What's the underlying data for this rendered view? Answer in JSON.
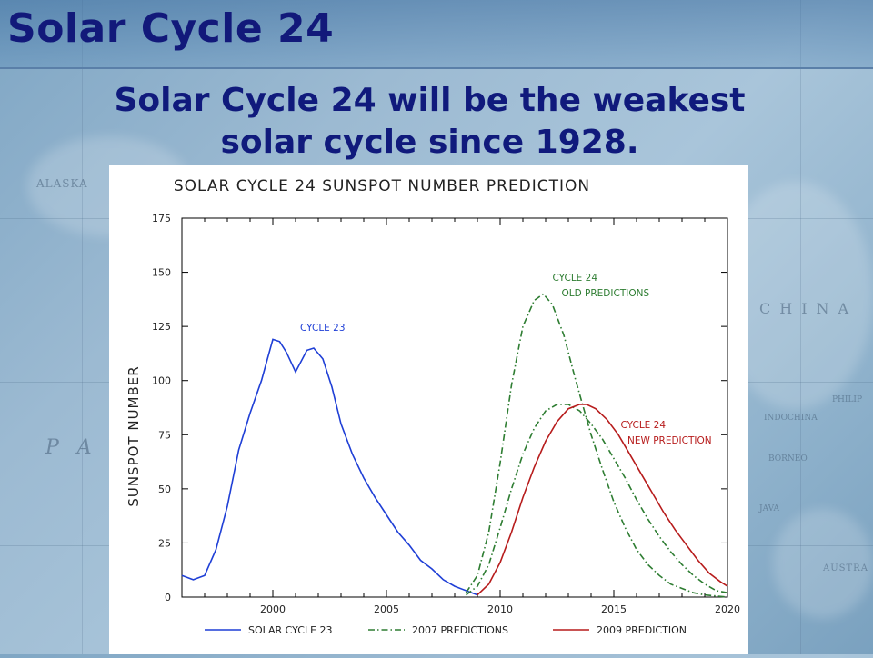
{
  "slide": {
    "title": "Solar Cycle 24",
    "subtitle_line1": "Solar Cycle 24 will be the weakest",
    "subtitle_line2": "solar cycle since 1928."
  },
  "background_map_labels": [
    "ALASKA",
    "PAC",
    "CHINA",
    "INDOCHINA",
    "PHILIP",
    "BORNEO",
    "JAVA",
    "AUSTRA"
  ],
  "chart_data": {
    "type": "line",
    "title": "SOLAR CYCLE 24 SUNSPOT NUMBER PREDICTION",
    "xlabel": "",
    "ylabel": "SUNSPOT NUMBER",
    "xlim": [
      1996,
      2020
    ],
    "ylim": [
      0,
      175
    ],
    "x_ticks": [
      "2000",
      "2005",
      "2010",
      "2015",
      "2020"
    ],
    "y_ticks": [
      "0",
      "25",
      "50",
      "75",
      "100",
      "125",
      "150",
      "175"
    ],
    "grid": false,
    "legend_position": "bottom",
    "series": [
      {
        "name": "SOLAR CYCLE 23",
        "color": "#1f3fd6",
        "style": "solid",
        "x": [
          1996.0,
          1996.5,
          1997.0,
          1997.5,
          1998.0,
          1998.5,
          1999.0,
          1999.5,
          2000.0,
          2000.3,
          2000.6,
          2001.0,
          2001.5,
          2001.8,
          2002.2,
          2002.6,
          2003.0,
          2003.5,
          2004.0,
          2004.5,
          2005.0,
          2005.5,
          2006.0,
          2006.5,
          2007.0,
          2007.5,
          2008.0,
          2008.5,
          2009.0
        ],
        "y": [
          10,
          8,
          10,
          22,
          42,
          68,
          85,
          100,
          119,
          118,
          113,
          104,
          114,
          115,
          110,
          97,
          80,
          66,
          55,
          46,
          38,
          30,
          24,
          17,
          13,
          8,
          5,
          3,
          1
        ]
      },
      {
        "name": "2007 PREDICTIONS",
        "color": "#2e7d32",
        "style": "dash-dot",
        "x": [
          2008.5,
          2009.0,
          2009.5,
          2010.0,
          2010.5,
          2011.0,
          2011.5,
          2011.9,
          2012.3,
          2012.8,
          2013.3,
          2014.0,
          2014.5,
          2015.0,
          2015.5,
          2016.0,
          2016.5,
          2017.0,
          2017.5,
          2018.0,
          2018.5,
          2019.0,
          2019.5,
          2020.0
        ],
        "y": [
          2,
          10,
          30,
          62,
          98,
          125,
          137,
          140,
          135,
          121,
          101,
          75,
          59,
          44,
          32,
          22,
          15,
          10,
          6,
          4,
          2,
          1,
          0.5,
          0
        ],
        "curves": [
          {
            "x": [
              2008.5,
              2009.0,
              2009.5,
              2010.0,
              2010.5,
              2011.0,
              2011.5,
              2011.9,
              2012.3,
              2012.8,
              2013.3,
              2014.0,
              2014.5,
              2015.0,
              2015.5,
              2016.0,
              2016.5,
              2017.0,
              2017.5,
              2018.0,
              2018.5,
              2019.0,
              2019.5,
              2020.0
            ],
            "y": [
              2,
              10,
              30,
              62,
              98,
              125,
              137,
              140,
              135,
              121,
              101,
              75,
              59,
              44,
              32,
              22,
              15,
              10,
              6,
              4,
              2,
              1,
              0.5,
              0
            ]
          },
          {
            "x": [
              2008.5,
              2009.0,
              2009.5,
              2010.0,
              2010.5,
              2011.0,
              2011.5,
              2012.0,
              2012.5,
              2013.0,
              2013.5,
              2014.0,
              2014.5,
              2015.0,
              2015.5,
              2016.0,
              2016.5,
              2017.0,
              2017.5,
              2018.0,
              2018.5,
              2019.0,
              2019.5,
              2020.0
            ],
            "y": [
              1,
              5,
              15,
              32,
              50,
              66,
              78,
              86,
              89,
              89,
              86,
              80,
              73,
              64,
              55,
              45,
              36,
              28,
              21,
              15,
              10,
              6,
              3,
              2
            ]
          }
        ]
      },
      {
        "name": "2009 PREDICTION",
        "color": "#b71c1c",
        "style": "solid",
        "x": [
          2009.0,
          2009.5,
          2010.0,
          2010.5,
          2011.0,
          2011.5,
          2012.0,
          2012.5,
          2013.0,
          2013.5,
          2013.8,
          2014.2,
          2014.7,
          2015.2,
          2015.7,
          2016.2,
          2016.7,
          2017.2,
          2017.7,
          2018.2,
          2018.7,
          2019.2,
          2019.7,
          2020.0
        ],
        "y": [
          1,
          6,
          16,
          30,
          46,
          60,
          72,
          81,
          87,
          89,
          89,
          87,
          82,
          75,
          66,
          57,
          48,
          39,
          31,
          24,
          17,
          11,
          7,
          5
        ]
      }
    ],
    "annotations": [
      {
        "text": "CYCLE 23",
        "x": 2001.2,
        "y": 123,
        "color": "#1f3fd6"
      },
      {
        "text": "CYCLE 24",
        "x": 2012.3,
        "y": 146,
        "color": "#2e7d32"
      },
      {
        "text": "OLD PREDICTIONS",
        "x": 2012.7,
        "y": 139,
        "color": "#2e7d32"
      },
      {
        "text": "CYCLE 24",
        "x": 2015.3,
        "y": 78,
        "color": "#b71c1c"
      },
      {
        "text": "NEW PREDICTION",
        "x": 2015.6,
        "y": 71,
        "color": "#b71c1c"
      }
    ]
  }
}
